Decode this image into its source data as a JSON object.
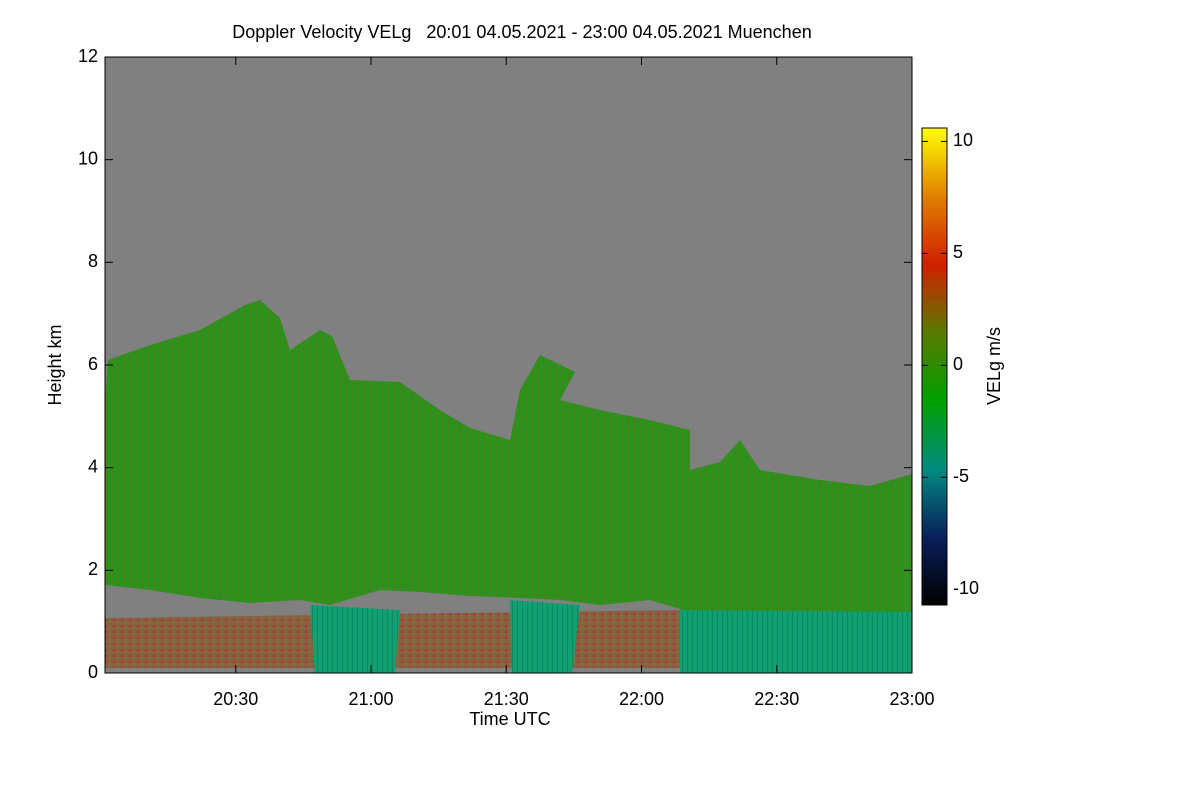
{
  "chart_data": {
    "type": "heatmap",
    "title": "Doppler Velocity VELg   20:01 04.05.2021 - 23:00 04.05.2021 Muenchen",
    "xlabel": "Time UTC",
    "ylabel": "Height km",
    "xlim": [
      20.0167,
      23.0
    ],
    "xticks": [
      {
        "value": 20.5,
        "label": "20:30"
      },
      {
        "value": 21.0,
        "label": "21:00"
      },
      {
        "value": 21.5,
        "label": "21:30"
      },
      {
        "value": 22.0,
        "label": "22:00"
      },
      {
        "value": 22.5,
        "label": "22:30"
      },
      {
        "value": 23.0,
        "label": "23:00"
      }
    ],
    "ylim": [
      0,
      12
    ],
    "yticks": [
      0,
      2,
      4,
      6,
      8,
      10,
      12
    ],
    "colorbar": {
      "label": "VELg m/s",
      "lim": [
        -10.7,
        10.6
      ],
      "ticks": [
        -10,
        -5,
        0,
        5,
        10
      ],
      "colors": [
        "#000000",
        "#0a1f5c",
        "#008c80",
        "#00a000",
        "#5a7a00",
        "#d02000",
        "#e08000",
        "#ffff00"
      ]
    },
    "background": "#808080"
  }
}
